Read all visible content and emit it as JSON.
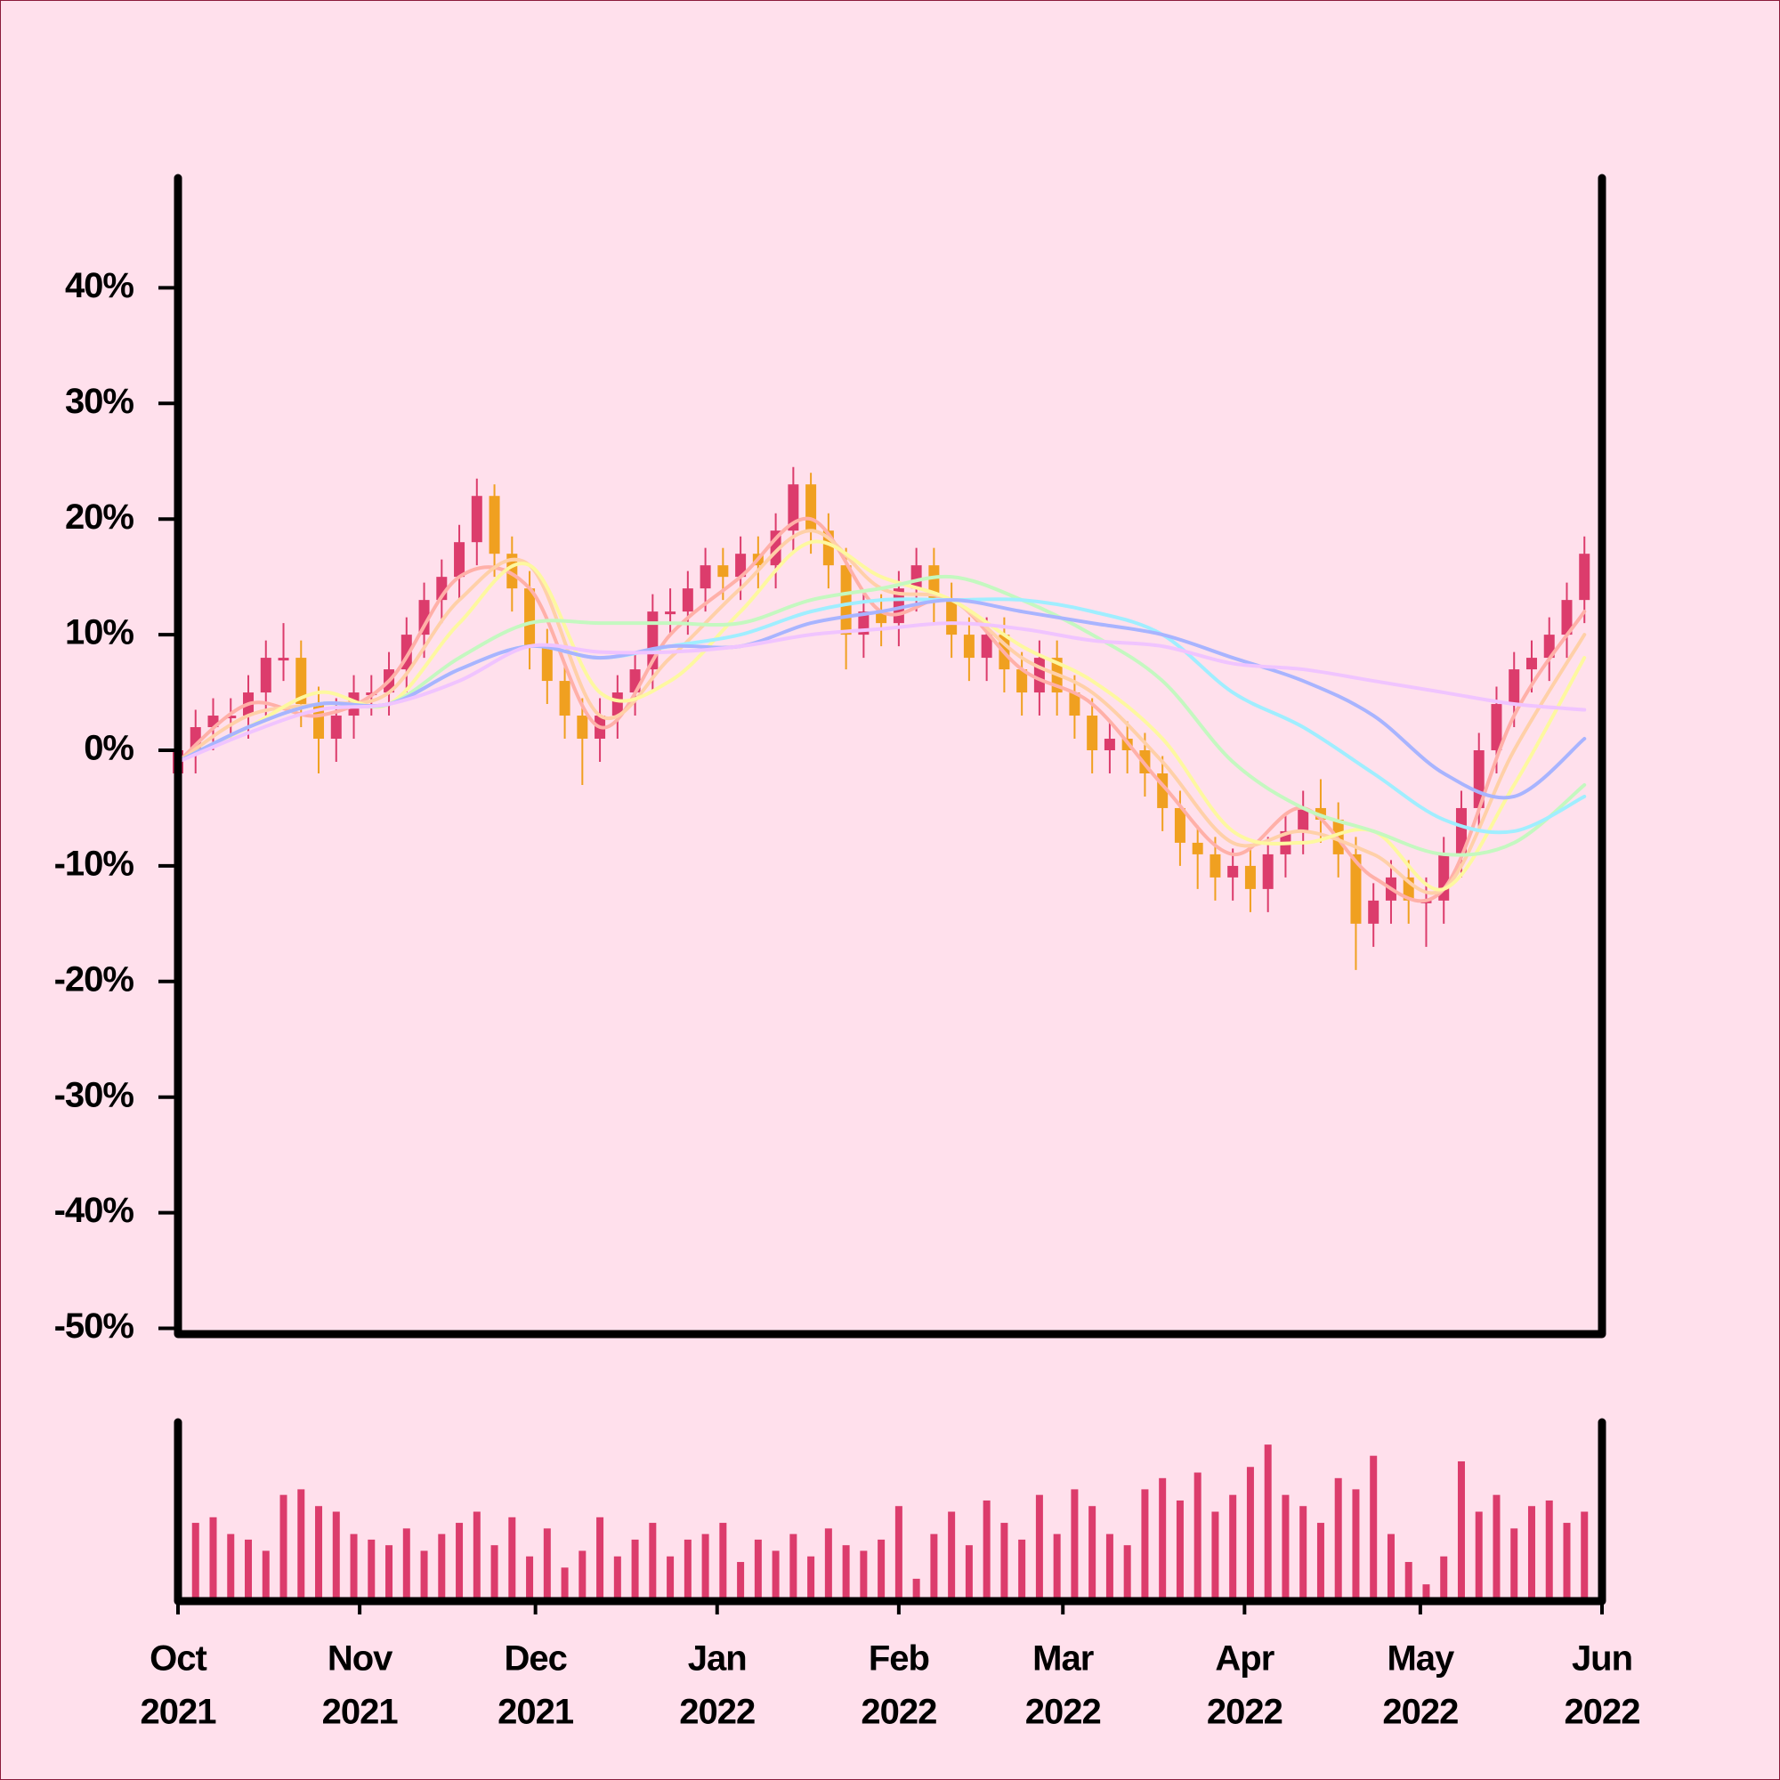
{
  "chart_data": {
    "type": "candlestick",
    "x": [
      "2021-10-01",
      "2021-10-04",
      "2021-10-07",
      "2021-10-10",
      "2021-10-13",
      "2021-10-16",
      "2021-10-19",
      "2021-10-22",
      "2021-10-25",
      "2021-10-28",
      "2021-10-31",
      "2021-11-03",
      "2021-11-06",
      "2021-11-09",
      "2021-11-12",
      "2021-11-15",
      "2021-11-18",
      "2021-11-21",
      "2021-11-24",
      "2021-11-27",
      "2021-11-30",
      "2021-12-03",
      "2021-12-06",
      "2021-12-09",
      "2021-12-12",
      "2021-12-15",
      "2021-12-18",
      "2021-12-21",
      "2021-12-24",
      "2021-12-27",
      "2021-12-30",
      "2022-01-02",
      "2022-01-05",
      "2022-01-08",
      "2022-01-11",
      "2022-01-14",
      "2022-01-17",
      "2022-01-20",
      "2022-01-23",
      "2022-01-26",
      "2022-01-29",
      "2022-02-01",
      "2022-02-04",
      "2022-02-07",
      "2022-02-10",
      "2022-02-13",
      "2022-02-16",
      "2022-02-19",
      "2022-02-22",
      "2022-02-25",
      "2022-02-28",
      "2022-03-03",
      "2022-03-06",
      "2022-03-09",
      "2022-03-12",
      "2022-03-15",
      "2022-03-18",
      "2022-03-21",
      "2022-03-24",
      "2022-03-27",
      "2022-03-30",
      "2022-04-02",
      "2022-04-05",
      "2022-04-08",
      "2022-04-11",
      "2022-04-14",
      "2022-04-17",
      "2022-04-20",
      "2022-04-23",
      "2022-04-26",
      "2022-04-29",
      "2022-05-02",
      "2022-05-05",
      "2022-05-08",
      "2022-05-11",
      "2022-05-14",
      "2022-05-17",
      "2022-05-20",
      "2022-05-23",
      "2022-05-26",
      "2022-05-29"
    ],
    "open": [
      -2,
      0,
      2,
      3,
      3,
      5,
      8,
      8,
      4,
      1,
      3,
      5,
      5,
      7,
      10,
      13,
      15,
      18,
      22,
      17,
      14,
      9,
      6,
      3,
      1,
      3,
      5,
      7,
      12,
      12,
      14,
      16,
      15,
      17,
      16,
      19,
      23,
      19,
      16,
      10,
      12,
      11,
      14,
      16,
      13,
      10,
      8,
      10,
      7,
      5,
      8,
      5,
      3,
      0,
      1,
      0,
      -2,
      -5,
      -8,
      -9,
      -11,
      -10,
      -12,
      -9,
      -7,
      -5,
      -6,
      -9,
      -15,
      -13,
      -11,
      -13,
      -13,
      -9,
      -5,
      0,
      4,
      7,
      8,
      10,
      13
    ],
    "high": [
      1.5,
      3.5,
      4.5,
      4.5,
      6.5,
      9.5,
      11,
      9.5,
      5.5,
      4.5,
      6.5,
      6.5,
      8.5,
      11.5,
      14.5,
      16.5,
      19.5,
      23.5,
      23,
      18.5,
      15.5,
      10.5,
      7.5,
      4.5,
      4.5,
      6.5,
      8.5,
      13.5,
      14,
      15.5,
      17.5,
      17.5,
      18.5,
      18.5,
      20.5,
      24.5,
      24,
      20.5,
      17.5,
      13.5,
      13.5,
      15.5,
      17.5,
      17.5,
      14.5,
      11.5,
      11.5,
      11.5,
      8.5,
      9.5,
      9.5,
      6.5,
      4.5,
      2.5,
      2.5,
      1.5,
      -0.5,
      -3.5,
      -6.5,
      -7.5,
      -8.5,
      -8.5,
      -7.5,
      -5.5,
      -3.5,
      -2.5,
      -4.5,
      -7.5,
      -11.5,
      -9.5,
      -9.5,
      -11,
      -7.5,
      -3.5,
      1.5,
      5.5,
      8.5,
      9.5,
      11.5,
      14.5,
      18.5
    ],
    "low": [
      -4,
      -2,
      0,
      1,
      1,
      3,
      6,
      2,
      -2,
      -1,
      1,
      3,
      3,
      5,
      8,
      11,
      13,
      16,
      15,
      12,
      7,
      4,
      1,
      -3,
      -1,
      1,
      3,
      5,
      10,
      10,
      12,
      13,
      13,
      14,
      14,
      17,
      17,
      14,
      7,
      8,
      9,
      9,
      12,
      11,
      8,
      6,
      6,
      5,
      3,
      3,
      3,
      1,
      -2,
      -2,
      -2,
      -4,
      -7,
      -10,
      -12,
      -13,
      -13,
      -14,
      -14,
      -11,
      -9,
      -8,
      -11,
      -19,
      -17,
      -15,
      -15,
      -17,
      -15,
      -11,
      -7,
      -2,
      2,
      5,
      6,
      8,
      11
    ],
    "close": [
      0,
      2,
      3,
      3,
      5,
      8,
      8,
      4,
      1,
      3,
      5,
      5,
      7,
      10,
      13,
      15,
      18,
      22,
      17,
      14,
      9,
      6,
      3,
      1,
      3,
      5,
      7,
      12,
      12,
      14,
      16,
      15,
      17,
      16,
      19,
      23,
      19,
      16,
      10,
      12,
      11,
      14,
      16,
      13,
      10,
      8,
      10,
      7,
      5,
      8,
      5,
      3,
      0,
      1,
      0,
      -2,
      -5,
      -8,
      -9,
      -11,
      -10,
      -12,
      -9,
      -7,
      -5,
      -6,
      -9,
      -15,
      -13,
      -11,
      -13,
      -13,
      -9,
      -5,
      0,
      4,
      7,
      8,
      10,
      13,
      17
    ],
    "up_color": "#dc3c6c",
    "down_color": "#f0a020",
    "ylim": [
      -50.5,
      49.5
    ],
    "yticks": [
      {
        "value": 40,
        "label": "40%"
      },
      {
        "value": 30,
        "label": "30%"
      },
      {
        "value": 20,
        "label": "20%"
      },
      {
        "value": 10,
        "label": "10%"
      },
      {
        "value": 0,
        "label": "0%"
      },
      {
        "value": -10,
        "label": "-10%"
      },
      {
        "value": -20,
        "label": "-20%"
      },
      {
        "value": -30,
        "label": "-30%"
      },
      {
        "value": -40,
        "label": "-40%"
      },
      {
        "value": -50,
        "label": "-50%"
      }
    ],
    "xlim": [
      "2021-10-01",
      "2022-06-01"
    ],
    "xticks": [
      {
        "value": "2021-10-01",
        "label": [
          "Oct",
          "2021"
        ]
      },
      {
        "value": "2021-11-01",
        "label": [
          "Nov",
          "2021"
        ]
      },
      {
        "value": "2021-12-01",
        "label": [
          "Dec",
          "2021"
        ]
      },
      {
        "value": "2022-01-01",
        "label": [
          "Jan",
          "2022"
        ]
      },
      {
        "value": "2022-02-01",
        "label": [
          "Feb",
          "2022"
        ]
      },
      {
        "value": "2022-03-01",
        "label": [
          "Mar",
          "2022"
        ]
      },
      {
        "value": "2022-04-01",
        "label": [
          "Apr",
          "2022"
        ]
      },
      {
        "value": "2022-05-01",
        "label": [
          "May",
          "2022"
        ]
      },
      {
        "value": "2022-06-01",
        "label": [
          "Jun",
          "2022"
        ]
      }
    ],
    "volume": {
      "color": "#dc3c6c",
      "ylim": [
        0,
        160
      ],
      "values": [
        90,
        70,
        75,
        60,
        55,
        45,
        95,
        100,
        85,
        80,
        60,
        55,
        50,
        65,
        45,
        60,
        70,
        80,
        50,
        75,
        40,
        65,
        30,
        45,
        75,
        40,
        55,
        70,
        40,
        55,
        60,
        70,
        35,
        55,
        45,
        60,
        40,
        65,
        50,
        45,
        55,
        85,
        20,
        60,
        80,
        50,
        90,
        70,
        55,
        95,
        60,
        100,
        85,
        60,
        50,
        100,
        110,
        90,
        115,
        80,
        95,
        120,
        140,
        95,
        85,
        70,
        110,
        100,
        130,
        60,
        35,
        15,
        40,
        125,
        80,
        95,
        65,
        85,
        90,
        70,
        80
      ]
    },
    "moving_averages": {
      "x": [
        "2021-10-01",
        "2021-10-13",
        "2021-10-25",
        "2021-11-06",
        "2021-11-18",
        "2021-11-30",
        "2021-12-12",
        "2021-12-24",
        "2022-01-05",
        "2022-01-17",
        "2022-01-29",
        "2022-02-10",
        "2022-02-22",
        "2022-03-06",
        "2022-03-18",
        "2022-03-30",
        "2022-04-11",
        "2022-04-23",
        "2022-05-05",
        "2022-05-17",
        "2022-05-29"
      ],
      "series": [
        {
          "color": "#ffb0a8",
          "values": [
            -1,
            4,
            3,
            6,
            15,
            14,
            2,
            10,
            15,
            20,
            12,
            13,
            7,
            4,
            -3,
            -9,
            -5,
            -11,
            -12,
            3,
            12
          ]
        },
        {
          "color": "#ffd0a8",
          "values": [
            -1,
            3,
            4,
            5,
            13,
            16,
            3,
            8,
            14,
            19,
            14,
            13,
            8,
            5,
            -1,
            -8,
            -7,
            -9,
            -12,
            0,
            10
          ]
        },
        {
          "color": "#fdf8a0",
          "values": [
            -1,
            2,
            5,
            4,
            11,
            16,
            5,
            6,
            12,
            18,
            15,
            13,
            9,
            6,
            1,
            -7,
            -8,
            -7,
            -12,
            -3,
            8
          ]
        },
        {
          "color": "#c4f8c0",
          "values": [
            -1,
            2,
            4,
            4,
            8,
            11,
            11,
            11,
            11,
            13,
            14,
            15,
            13,
            10,
            6,
            -1,
            -5,
            -7,
            -9,
            -8,
            -3
          ]
        },
        {
          "color": "#a0eeff",
          "values": [
            -1,
            2,
            4,
            4,
            7,
            9,
            8,
            9,
            10,
            12,
            13,
            13,
            13,
            12,
            10,
            5,
            2,
            -2,
            -6,
            -7,
            -4
          ]
        },
        {
          "color": "#a8b4ff",
          "values": [
            -1,
            2,
            4,
            4,
            7,
            9,
            8,
            9,
            9,
            11,
            12,
            13,
            12,
            11,
            10,
            8,
            6,
            3,
            -2,
            -4,
            1
          ]
        },
        {
          "color": "#f0c4ff",
          "values": [
            -1,
            1.5,
            3.5,
            4,
            6,
            9,
            8.5,
            8.5,
            9,
            10,
            10.5,
            11,
            10.5,
            9.5,
            9,
            7.5,
            7,
            6,
            5,
            4,
            3.5
          ]
        }
      ]
    }
  }
}
